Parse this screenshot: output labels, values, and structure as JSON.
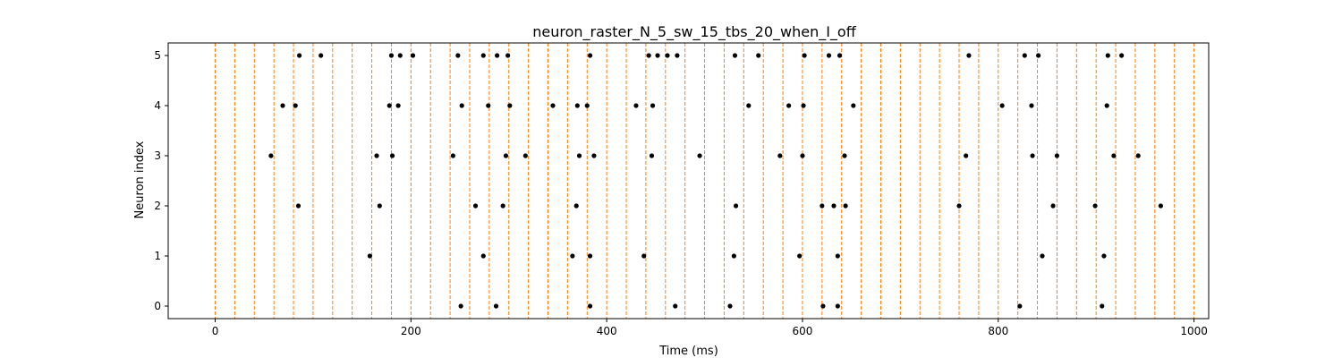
{
  "chart_data": {
    "type": "scatter",
    "title": "neuron_raster_N_5_sw_15_tbs_20_when_I_off",
    "xlabel": "Time (ms)",
    "ylabel": "Neuron index",
    "xlim": [
      -48,
      1015
    ],
    "ylim": [
      -0.25,
      5.25
    ],
    "xticks": [
      0,
      200,
      400,
      600,
      800,
      1000
    ],
    "yticks": [
      0,
      1,
      2,
      3,
      4,
      5
    ],
    "grid": false,
    "point_color": "#000000",
    "vline_color": "#ff7f0e",
    "vline_style": "dashed",
    "vlines": [
      0,
      20,
      40,
      60,
      80,
      100,
      120,
      140,
      160,
      180,
      200,
      220,
      240,
      260,
      280,
      300,
      320,
      340,
      360,
      380,
      400,
      420,
      440,
      460,
      480,
      500,
      520,
      540,
      560,
      580,
      600,
      620,
      640,
      660,
      680,
      700,
      720,
      740,
      760,
      780,
      800,
      820,
      840,
      860,
      880,
      900,
      920,
      940,
      960,
      980,
      1000
    ],
    "spikes": [
      {
        "neuron": 5,
        "times": [
          86,
          108,
          180,
          189,
          202,
          248,
          274,
          288,
          299,
          383,
          443,
          452,
          462,
          472,
          531,
          555,
          602,
          627,
          638,
          770,
          827,
          841,
          912,
          926
        ]
      },
      {
        "neuron": 4,
        "times": [
          69,
          82,
          178,
          187,
          252,
          279,
          301,
          345,
          370,
          380,
          430,
          447,
          545,
          586,
          601,
          652,
          804,
          834,
          911
        ]
      },
      {
        "neuron": 3,
        "times": [
          57,
          165,
          181,
          243,
          297,
          317,
          372,
          387,
          446,
          495,
          577,
          600,
          643,
          767,
          835,
          860,
          918,
          943
        ]
      },
      {
        "neuron": 2,
        "times": [
          85,
          168,
          266,
          294,
          369,
          532,
          620,
          632,
          644,
          760,
          856,
          899,
          966
        ]
      },
      {
        "neuron": 1,
        "times": [
          158,
          274,
          365,
          383,
          438,
          530,
          597,
          636,
          845,
          908
        ]
      },
      {
        "neuron": 0,
        "times": [
          251,
          287,
          383,
          470,
          526,
          621,
          636,
          822,
          906
        ]
      }
    ]
  }
}
